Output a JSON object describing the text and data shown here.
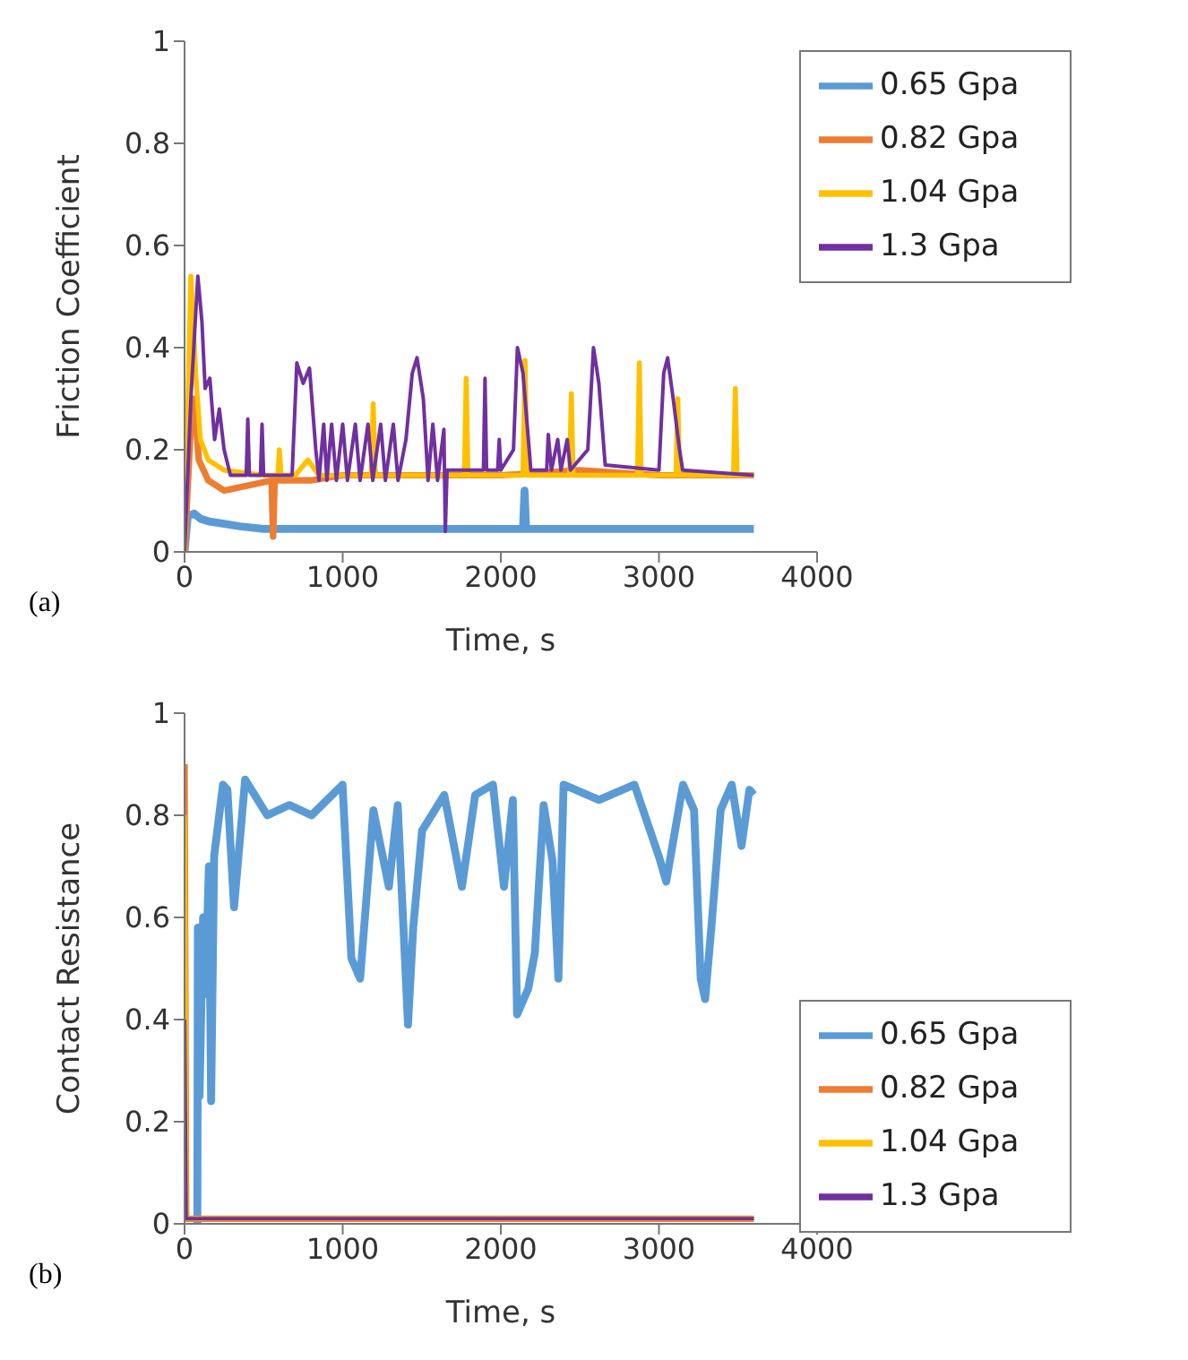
{
  "chart_data": [
    {
      "type": "line",
      "xlabel": "Time, s",
      "ylabel": "Friction Coefficient",
      "xlim": [
        0,
        4000
      ],
      "xticks": [
        0,
        1000,
        2000,
        3000,
        4000
      ],
      "ylim": [
        0,
        1
      ],
      "yticks": [
        0,
        0.2,
        0.4,
        0.6,
        0.8,
        1
      ],
      "legend": "top right",
      "grid": false,
      "annotations": [
        "(a)"
      ],
      "series": [
        {
          "name": "0.65 Gpa",
          "color": "#5b9bd5",
          "x": [
            0,
            20,
            60,
            100,
            150,
            250,
            350,
            500,
            1000,
            2140,
            2150,
            2160,
            3000,
            3600
          ],
          "values": [
            0,
            0.07,
            0.075,
            0.065,
            0.06,
            0.055,
            0.05,
            0.045,
            0.045,
            0.045,
            0.12,
            0.045,
            0.045,
            0.045
          ]
        },
        {
          "name": "0.82 Gpa",
          "color": "#ed7d31",
          "x": [
            0,
            40,
            60,
            90,
            150,
            250,
            400,
            550,
            560,
            570,
            800,
            1000,
            1600,
            2000,
            2500,
            3000,
            3600
          ],
          "values": [
            0,
            0.25,
            0.3,
            0.18,
            0.14,
            0.12,
            0.13,
            0.14,
            0.03,
            0.14,
            0.14,
            0.15,
            0.15,
            0.15,
            0.16,
            0.15,
            0.15
          ]
        },
        {
          "name": "1.04 Gpa",
          "color": "#ffc000",
          "x": [
            0,
            40,
            70,
            100,
            150,
            250,
            500,
            590,
            600,
            610,
            700,
            780,
            850,
            1180,
            1193,
            1206,
            1770,
            1781,
            1792,
            2140,
            2153,
            2166,
            2435,
            2446,
            2457,
            2865,
            2876,
            2887,
            3108,
            3119,
            3130,
            3472,
            3483,
            3494,
            3600
          ],
          "values": [
            0,
            0.54,
            0.35,
            0.22,
            0.18,
            0.16,
            0.15,
            0.15,
            0.2,
            0.15,
            0.15,
            0.18,
            0.15,
            0.15,
            0.29,
            0.15,
            0.15,
            0.34,
            0.15,
            0.15,
            0.375,
            0.15,
            0.15,
            0.31,
            0.15,
            0.15,
            0.37,
            0.15,
            0.15,
            0.3,
            0.15,
            0.15,
            0.32,
            0.15,
            0.15
          ]
        },
        {
          "name": "1.3 Gpa",
          "color": "#7030a0",
          "x": [
            0,
            40,
            84,
            110,
            130,
            160,
            190,
            220,
            250,
            290,
            390,
            400,
            410,
            480,
            490,
            500,
            680,
            710,
            750,
            790,
            830,
            850,
            880,
            900,
            930,
            960,
            1000,
            1030,
            1080,
            1110,
            1160,
            1190,
            1240,
            1270,
            1320,
            1350,
            1400,
            1440,
            1470,
            1510,
            1540,
            1570,
            1600,
            1640,
            1649,
            1660,
            1890,
            1900,
            1910,
            1980,
            1990,
            2000,
            2080,
            2105,
            2140,
            2190,
            2290,
            2300,
            2320,
            2360,
            2380,
            2420,
            2440,
            2550,
            2586,
            2620,
            2660,
            3000,
            3030,
            3055,
            3090,
            3130,
            3150,
            3600
          ],
          "values": [
            0,
            0.3,
            0.54,
            0.45,
            0.32,
            0.34,
            0.22,
            0.28,
            0.2,
            0.15,
            0.15,
            0.26,
            0.15,
            0.15,
            0.25,
            0.15,
            0.15,
            0.37,
            0.33,
            0.36,
            0.2,
            0.14,
            0.25,
            0.14,
            0.25,
            0.14,
            0.25,
            0.14,
            0.25,
            0.14,
            0.25,
            0.14,
            0.25,
            0.14,
            0.25,
            0.14,
            0.22,
            0.35,
            0.38,
            0.3,
            0.14,
            0.25,
            0.14,
            0.24,
            0.04,
            0.16,
            0.16,
            0.34,
            0.16,
            0.16,
            0.22,
            0.16,
            0.2,
            0.4,
            0.35,
            0.16,
            0.16,
            0.23,
            0.16,
            0.22,
            0.16,
            0.22,
            0.16,
            0.2,
            0.4,
            0.33,
            0.17,
            0.16,
            0.35,
            0.38,
            0.3,
            0.2,
            0.16,
            0.15
          ]
        }
      ]
    },
    {
      "type": "line",
      "xlabel": "Time, s",
      "ylabel": "Contact Resistance",
      "xlim": [
        0,
        4000
      ],
      "xticks": [
        0,
        1000,
        2000,
        3000,
        4000
      ],
      "ylim": [
        0,
        1
      ],
      "yticks": [
        0,
        0.2,
        0.4,
        0.6,
        0.8,
        1
      ],
      "legend": "bottom right",
      "grid": false,
      "annotations": [
        "(b)"
      ],
      "series": [
        {
          "name": "0.65 Gpa",
          "color": "#5b9bd5",
          "x": [
            81,
            84,
            95,
            117,
            131,
            154,
            168,
            187,
            243,
            271,
            313,
            383,
            523,
            663,
            803,
            999,
            1055,
            1110,
            1194,
            1292,
            1348,
            1413,
            1446,
            1502,
            1642,
            1754,
            1838,
            1950,
            2020,
            2076,
            2103,
            2173,
            2215,
            2271,
            2327,
            2364,
            2397,
            2621,
            2845,
            2999,
            3046,
            3152,
            3222,
            3264,
            3292,
            3334,
            3390,
            3460,
            3522,
            3572,
            3600
          ],
          "values": [
            0,
            0.58,
            0.25,
            0.6,
            0.45,
            0.7,
            0.24,
            0.72,
            0.86,
            0.85,
            0.62,
            0.87,
            0.8,
            0.82,
            0.8,
            0.86,
            0.52,
            0.48,
            0.81,
            0.66,
            0.82,
            0.39,
            0.58,
            0.77,
            0.84,
            0.66,
            0.84,
            0.86,
            0.66,
            0.83,
            0.41,
            0.46,
            0.53,
            0.82,
            0.71,
            0.48,
            0.86,
            0.83,
            0.86,
            0.72,
            0.67,
            0.86,
            0.81,
            0.48,
            0.44,
            0.59,
            0.81,
            0.86,
            0.74,
            0.85,
            0.84
          ]
        },
        {
          "name": "0.82 Gpa",
          "color": "#ed7d31",
          "x": [
            0,
            10,
            3600
          ],
          "values": [
            0.9,
            0.01,
            0.01
          ]
        },
        {
          "name": "1.04 Gpa",
          "color": "#ffc000",
          "x": [
            0,
            10,
            3600
          ],
          "values": [
            0.8,
            0.01,
            0.01
          ]
        },
        {
          "name": "1.3 Gpa",
          "color": "#7030a0",
          "x": [
            0,
            10,
            3600
          ],
          "values": [
            0.4,
            0.01,
            0.01
          ]
        }
      ]
    }
  ]
}
